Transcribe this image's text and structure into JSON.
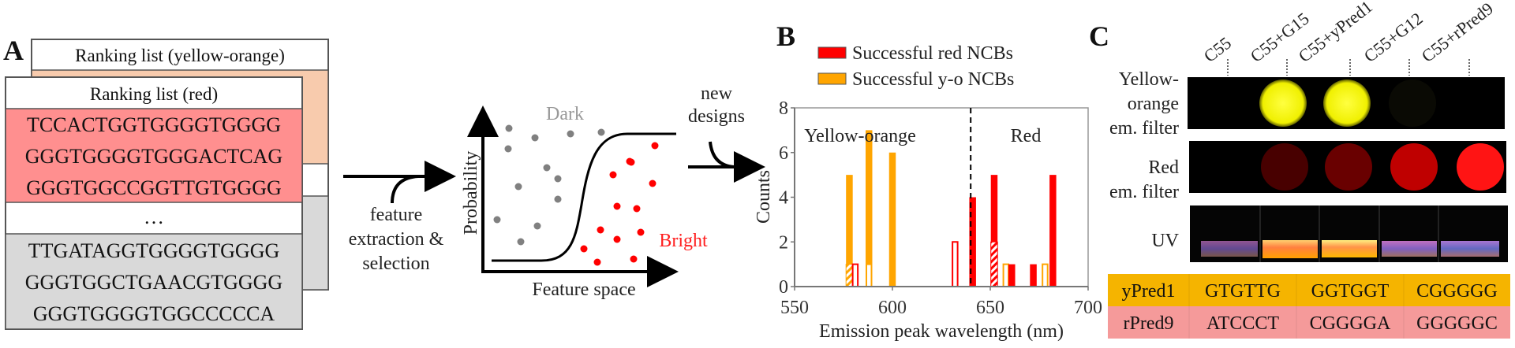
{
  "panel_labels": {
    "a": "A",
    "b": "B",
    "c": "C"
  },
  "panel_a": {
    "back_list": {
      "title": "Ranking list (yellow-orange)"
    },
    "front_list": {
      "title": "Ranking list (red)",
      "top_sequences": [
        "TCCACTGGTGGGGTGGGG",
        "GGGTGGGGTGGGACTCAG",
        "GGGTGGCCGGTTGTGGGG"
      ],
      "ellipsis": "…",
      "bottom_sequences": [
        "TTGATAGGTGGGGTGGGG",
        "GGGTGGCTGAACGTGGGG",
        "GGGTGGGGTGGCCCCCA"
      ]
    },
    "arrow_label": [
      "feature",
      "extraction &",
      "selection"
    ],
    "classifier_plot": {
      "ylabel": "Probability",
      "xlabel": "Feature space",
      "dark_label": "Dark",
      "bright_label": "Bright"
    },
    "new_designs_label": [
      "new",
      "designs"
    ]
  },
  "chart_data": {
    "type": "bar",
    "xlabel": "Emission peak wavelength (nm)",
    "ylabel": "Counts",
    "xlim": [
      550,
      700
    ],
    "ylim": [
      0,
      8
    ],
    "xticks": [
      "550",
      "600",
      "650",
      "700"
    ],
    "yticks": [
      "0",
      "2",
      "4",
      "6",
      "8"
    ],
    "legend_position": "top",
    "series": [
      {
        "name": "Successful red NCBs",
        "color": "#ff0000"
      },
      {
        "name": "Successful y-o NCBs",
        "color": "#ffa500"
      }
    ],
    "region_labels": [
      "Yellow-orange",
      "Red"
    ],
    "region_divider": 640,
    "bars": [
      {
        "x": 578,
        "series": 1,
        "total": 5,
        "hatched": 1,
        "hollow": 0
      },
      {
        "x": 581,
        "series": 0,
        "total": 1,
        "hatched": 0,
        "hollow": 1
      },
      {
        "x": 588,
        "series": 1,
        "total": 7,
        "hatched": 0,
        "hollow": 1
      },
      {
        "x": 600,
        "series": 1,
        "total": 6,
        "hatched": 0,
        "hollow": 0
      },
      {
        "x": 632,
        "series": 0,
        "total": 2,
        "hatched": 0,
        "hollow": 2
      },
      {
        "x": 641,
        "series": 0,
        "total": 4,
        "hatched": 0,
        "hollow": 0
      },
      {
        "x": 652,
        "series": 0,
        "total": 5,
        "hatched": 2,
        "hollow": 0
      },
      {
        "x": 658,
        "series": 1,
        "total": 1,
        "hatched": 0,
        "hollow": 1
      },
      {
        "x": 661,
        "series": 0,
        "total": 1,
        "hatched": 0,
        "hollow": 0
      },
      {
        "x": 672,
        "series": 0,
        "total": 1,
        "hatched": 0,
        "hollow": 0
      },
      {
        "x": 678,
        "series": 1,
        "total": 1,
        "hatched": 0,
        "hollow": 1
      },
      {
        "x": 682,
        "series": 0,
        "total": 5,
        "hatched": 0,
        "hollow": 0
      }
    ]
  },
  "panel_c": {
    "lanes": [
      "C55",
      "C55+G15",
      "C55+yPred1",
      "C55+G12",
      "C55+rPred9"
    ],
    "row_labels": {
      "yellow": [
        "Yellow-",
        "orange",
        "em. filter"
      ],
      "red": [
        "Red",
        "em. filter"
      ],
      "uv": "UV"
    },
    "yellow_intensity": [
      0,
      1,
      1,
      0.02,
      0
    ],
    "red_intensity": [
      0,
      0.15,
      0.3,
      0.7,
      1
    ],
    "table": [
      {
        "name": "yPred1",
        "cells": [
          "GTGTTG",
          "GGTGGT",
          "CGGGGG"
        ],
        "color": "#f5b400"
      },
      {
        "name": "rPred9",
        "cells": [
          "ATCCCT",
          "CGGGGA",
          "GGGGGC"
        ],
        "color": "#f59a9a"
      }
    ]
  }
}
